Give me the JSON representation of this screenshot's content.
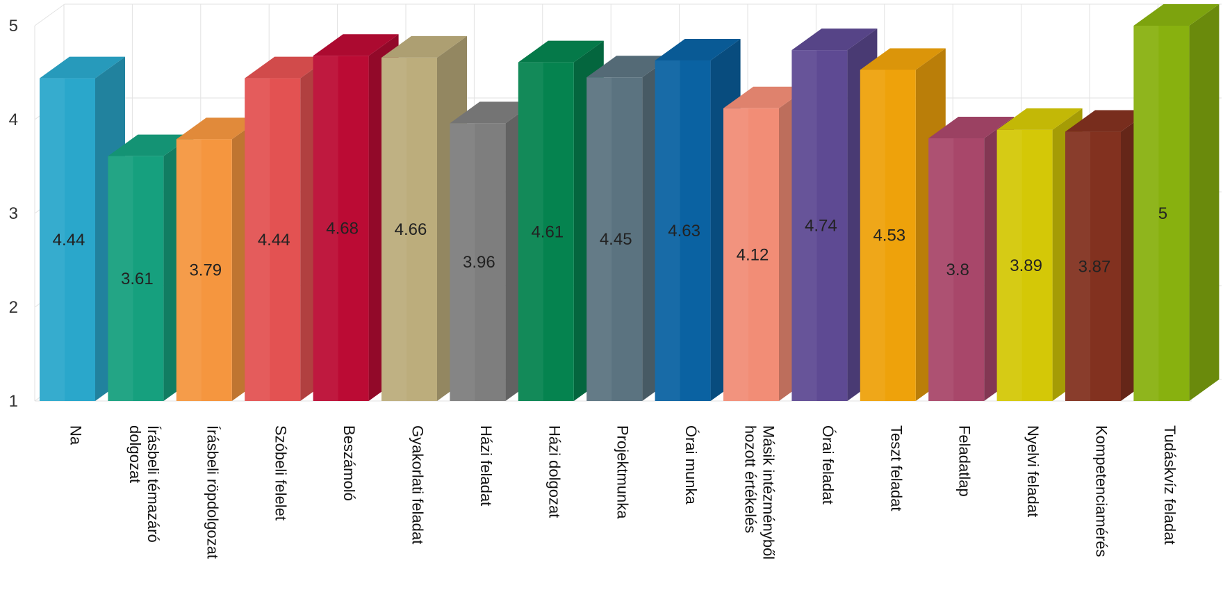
{
  "chart_data": {
    "type": "bar",
    "title": "",
    "xlabel": "",
    "ylabel": "",
    "ylim": [
      1,
      5
    ],
    "yticks": [
      "1",
      "2",
      "3",
      "4",
      "5"
    ],
    "grid": true,
    "three_d": true,
    "categories": [
      [
        "Na"
      ],
      [
        "Írásbeli témazáró",
        "dolgozat"
      ],
      [
        "Írásbeli röpdolgozat"
      ],
      [
        "Szóbeli felelet"
      ],
      [
        "Beszámoló"
      ],
      [
        "Gyakorlati feladat"
      ],
      [
        "Házi feladat"
      ],
      [
        "Házi dolgozat"
      ],
      [
        "Projektmunka"
      ],
      [
        "Órai munka"
      ],
      [
        "Másik intézményből",
        "hozott értékelés"
      ],
      [
        "Órai feladat"
      ],
      [
        "Teszt feladat"
      ],
      [
        "Feladatlap"
      ],
      [
        "Nyelvi feladat"
      ],
      [
        "Kompetenciamérés"
      ],
      [
        "Tudáskvíz feladat"
      ]
    ],
    "values": [
      4.44,
      3.61,
      3.79,
      4.44,
      4.68,
      4.66,
      3.96,
      4.61,
      4.45,
      4.63,
      4.12,
      4.74,
      4.53,
      3.8,
      3.89,
      3.87,
      5
    ],
    "value_labels": [
      "4.44",
      "3.61",
      "3.79",
      "4.44",
      "4.68",
      "4.66",
      "3.96",
      "4.61",
      "4.45",
      "4.63",
      "4.12",
      "4.74",
      "4.53",
      "3.8",
      "3.89",
      "3.87",
      "5"
    ],
    "colors": [
      "#2aa7cb",
      "#16a07e",
      "#f5963f",
      "#e35252",
      "#bb0b34",
      "#bcad7c",
      "#7e7e7e",
      "#05834f",
      "#5b7380",
      "#0a62a2",
      "#f28d76",
      "#5e4a93",
      "#eea20b",
      "#a8476a",
      "#d4c807",
      "#82311f",
      "#88b10f"
    ]
  }
}
